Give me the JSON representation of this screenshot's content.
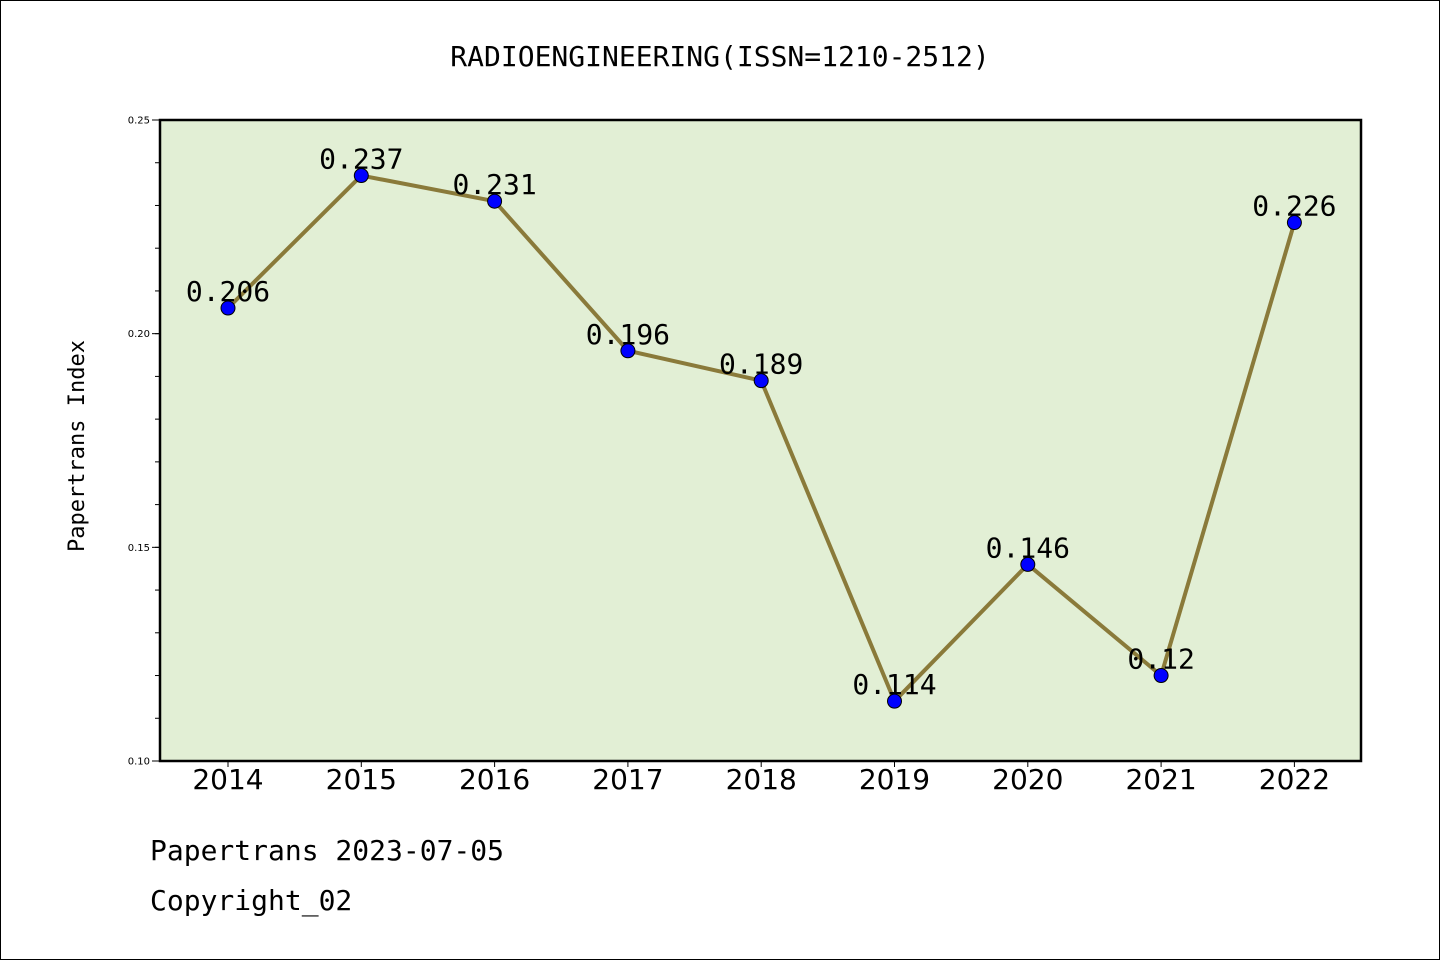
{
  "colors": {
    "plot_background": "#e2efd5",
    "line": "#8a7a3a",
    "marker": "#0000ff"
  },
  "footer": {
    "source": "Papertrans 2023-07-05",
    "copyright": "Copyright_02"
  },
  "chart_data": {
    "type": "line",
    "title": "RADIOENGINEERING(ISSN=1210-2512)",
    "xlabel": "",
    "ylabel": "Papertrans Index",
    "categories": [
      "2014",
      "2015",
      "2016",
      "2017",
      "2018",
      "2019",
      "2020",
      "2021",
      "2022"
    ],
    "series": [
      {
        "values": [
          0.206,
          0.237,
          0.231,
          0.196,
          0.189,
          0.114,
          0.146,
          0.12,
          0.226
        ],
        "labels": [
          "0.206",
          "0.237",
          "0.231",
          "0.196",
          "0.189",
          "0.114",
          "0.146",
          "0.12",
          "0.226"
        ]
      }
    ],
    "ylim": [
      0.1,
      0.25
    ],
    "yticks": [
      "0.10",
      "0.15",
      "0.20",
      "0.25"
    ],
    "grid": false,
    "legend": "none"
  }
}
